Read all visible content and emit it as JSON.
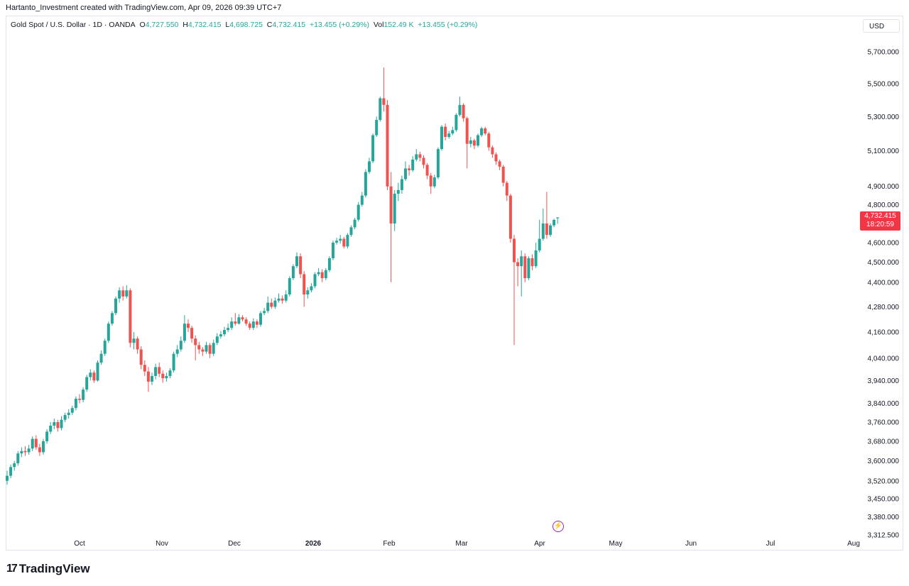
{
  "credit": "Hartanto_Investment created with TradingView.com, Apr 09, 2026 09:39 UTC+7",
  "legend": {
    "symbol": "Gold Spot / U.S. Dollar · 1D · OANDA",
    "o_label": "O",
    "o": "4,727.550",
    "h_label": "H",
    "h": "4,732.415",
    "l_label": "L",
    "l": "4,698.725",
    "c_label": "C",
    "c": "4,732.415",
    "change": "+13.455 (+0.29%)",
    "vol_label": "Vol",
    "vol": "152.49 K",
    "vol_change": "+13.455 (+0.29%)"
  },
  "currency": "USD",
  "last_price": {
    "price": "4,732.415",
    "countdown": "18:20:59",
    "color": "#f23645"
  },
  "logo_text": "TradingView",
  "colors": {
    "up": "#26a69a",
    "down": "#ef5350",
    "accent": "#9c27b0"
  },
  "chart_data": {
    "type": "candlestick",
    "scale": "log",
    "ylim": [
      3312.5,
      5700
    ],
    "grid": false,
    "price_ticks": [
      {
        "value": 5700,
        "label": "5,700.000"
      },
      {
        "value": 5500,
        "label": "5,500.000"
      },
      {
        "value": 5300,
        "label": "5,300.000"
      },
      {
        "value": 5100,
        "label": "5,100.000"
      },
      {
        "value": 4900,
        "label": "4,900.000"
      },
      {
        "value": 4800,
        "label": "4,800.000"
      },
      {
        "value": 4600,
        "label": "4,600.000"
      },
      {
        "value": 4500,
        "label": "4,500.000"
      },
      {
        "value": 4400,
        "label": "4,400.000"
      },
      {
        "value": 4280,
        "label": "4,280.000"
      },
      {
        "value": 4160,
        "label": "4,160.000"
      },
      {
        "value": 4040,
        "label": "4,040.000"
      },
      {
        "value": 3940,
        "label": "3,940.000"
      },
      {
        "value": 3840,
        "label": "3,840.000"
      },
      {
        "value": 3760,
        "label": "3,760.000"
      },
      {
        "value": 3680,
        "label": "3,680.000"
      },
      {
        "value": 3600,
        "label": "3,600.000"
      },
      {
        "value": 3520,
        "label": "3,520.000"
      },
      {
        "value": 3450,
        "label": "3,450.000"
      },
      {
        "value": 3380,
        "label": "3,380.000"
      },
      {
        "value": 3312.5,
        "label": "3,312.500"
      }
    ],
    "time_ticks": [
      "Oct",
      "Nov",
      "Dec",
      "2026",
      "Feb",
      "Mar",
      "Apr",
      "May",
      "Jun",
      "Jul",
      "Aug"
    ],
    "candles": [
      [
        3520,
        3560,
        3505,
        3540
      ],
      [
        3540,
        3585,
        3530,
        3575
      ],
      [
        3575,
        3600,
        3560,
        3590
      ],
      [
        3590,
        3640,
        3580,
        3630
      ],
      [
        3630,
        3655,
        3615,
        3640
      ],
      [
        3640,
        3660,
        3620,
        3635
      ],
      [
        3635,
        3665,
        3625,
        3650
      ],
      [
        3650,
        3700,
        3640,
        3690
      ],
      [
        3690,
        3705,
        3645,
        3655
      ],
      [
        3655,
        3670,
        3620,
        3635
      ],
      [
        3635,
        3690,
        3625,
        3680
      ],
      [
        3680,
        3730,
        3670,
        3720
      ],
      [
        3720,
        3760,
        3710,
        3745
      ],
      [
        3745,
        3775,
        3730,
        3760
      ],
      [
        3760,
        3770,
        3720,
        3735
      ],
      [
        3735,
        3785,
        3725,
        3770
      ],
      [
        3770,
        3800,
        3760,
        3790
      ],
      [
        3790,
        3815,
        3775,
        3800
      ],
      [
        3800,
        3830,
        3790,
        3820
      ],
      [
        3820,
        3870,
        3810,
        3860
      ],
      [
        3860,
        3880,
        3840,
        3855
      ],
      [
        3855,
        3910,
        3845,
        3900
      ],
      [
        3900,
        3965,
        3890,
        3955
      ],
      [
        3955,
        3990,
        3940,
        3975
      ],
      [
        3975,
        3985,
        3930,
        3940
      ],
      [
        3940,
        4030,
        3935,
        4020
      ],
      [
        4020,
        4075,
        4010,
        4060
      ],
      [
        4060,
        4130,
        4050,
        4120
      ],
      [
        4120,
        4210,
        4110,
        4200
      ],
      [
        4200,
        4260,
        4190,
        4250
      ],
      [
        4250,
        4330,
        4240,
        4320
      ],
      [
        4320,
        4375,
        4300,
        4360
      ],
      [
        4360,
        4380,
        4310,
        4330
      ],
      [
        4330,
        4385,
        4320,
        4360
      ],
      [
        4360,
        4370,
        4090,
        4110
      ],
      [
        4110,
        4160,
        4080,
        4130
      ],
      [
        4130,
        4140,
        4060,
        4080
      ],
      [
        4080,
        4095,
        3990,
        4010
      ],
      [
        4010,
        4030,
        3960,
        3980
      ],
      [
        3980,
        4000,
        3890,
        3935
      ],
      [
        3935,
        3975,
        3920,
        3960
      ],
      [
        3960,
        4015,
        3945,
        4000
      ],
      [
        4000,
        4020,
        3955,
        3970
      ],
      [
        3970,
        3985,
        3930,
        3950
      ],
      [
        3950,
        3975,
        3935,
        3960
      ],
      [
        3960,
        3995,
        3950,
        3985
      ],
      [
        3985,
        4070,
        3975,
        4060
      ],
      [
        4060,
        4100,
        4045,
        4080
      ],
      [
        4080,
        4140,
        4070,
        4120
      ],
      [
        4120,
        4240,
        4110,
        4200
      ],
      [
        4200,
        4220,
        4160,
        4180
      ],
      [
        4180,
        4190,
        4110,
        4130
      ],
      [
        4130,
        4145,
        4030,
        4100
      ],
      [
        4100,
        4115,
        4060,
        4080
      ],
      [
        4080,
        4090,
        4050,
        4070
      ],
      [
        4070,
        4115,
        4060,
        4100
      ],
      [
        4100,
        4110,
        4040,
        4060
      ],
      [
        4060,
        4125,
        4050,
        4110
      ],
      [
        4110,
        4155,
        4100,
        4140
      ],
      [
        4140,
        4165,
        4130,
        4150
      ],
      [
        4150,
        4185,
        4140,
        4170
      ],
      [
        4170,
        4200,
        4160,
        4180
      ],
      [
        4180,
        4230,
        4170,
        4210
      ],
      [
        4210,
        4250,
        4190,
        4200
      ],
      [
        4200,
        4245,
        4195,
        4230
      ],
      [
        4230,
        4240,
        4210,
        4220
      ],
      [
        4220,
        4230,
        4190,
        4200
      ],
      [
        4200,
        4210,
        4170,
        4180
      ],
      [
        4180,
        4225,
        4170,
        4210
      ],
      [
        4210,
        4220,
        4180,
        4195
      ],
      [
        4195,
        4260,
        4185,
        4250
      ],
      [
        4250,
        4275,
        4240,
        4260
      ],
      [
        4260,
        4330,
        4250,
        4300
      ],
      [
        4300,
        4320,
        4270,
        4280
      ],
      [
        4280,
        4325,
        4270,
        4310
      ],
      [
        4310,
        4345,
        4300,
        4320
      ],
      [
        4320,
        4335,
        4295,
        4310
      ],
      [
        4310,
        4360,
        4300,
        4340
      ],
      [
        4340,
        4430,
        4330,
        4420
      ],
      [
        4420,
        4490,
        4410,
        4480
      ],
      [
        4480,
        4550,
        4470,
        4530
      ],
      [
        4530,
        4545,
        4420,
        4440
      ],
      [
        4440,
        4455,
        4280,
        4340
      ],
      [
        4340,
        4375,
        4320,
        4360
      ],
      [
        4360,
        4395,
        4350,
        4380
      ],
      [
        4380,
        4450,
        4370,
        4440
      ],
      [
        4440,
        4470,
        4430,
        4450
      ],
      [
        4450,
        4465,
        4400,
        4420
      ],
      [
        4420,
        4470,
        4410,
        4460
      ],
      [
        4460,
        4530,
        4450,
        4520
      ],
      [
        4520,
        4610,
        4510,
        4600
      ],
      [
        4600,
        4625,
        4590,
        4610
      ],
      [
        4610,
        4640,
        4595,
        4620
      ],
      [
        4620,
        4630,
        4570,
        4580
      ],
      [
        4580,
        4650,
        4570,
        4640
      ],
      [
        4640,
        4690,
        4630,
        4680
      ],
      [
        4680,
        4730,
        4670,
        4720
      ],
      [
        4720,
        4815,
        4710,
        4800
      ],
      [
        4800,
        4870,
        4790,
        4850
      ],
      [
        4850,
        4995,
        4840,
        4980
      ],
      [
        4980,
        5060,
        4970,
        5040
      ],
      [
        5040,
        5200,
        5030,
        5190
      ],
      [
        5190,
        5300,
        5180,
        5280
      ],
      [
        5280,
        5420,
        5270,
        5410
      ],
      [
        5410,
        5600,
        5330,
        5370
      ],
      [
        5370,
        5400,
        4880,
        4900
      ],
      [
        4900,
        4980,
        4400,
        4700
      ],
      [
        4700,
        4880,
        4660,
        4860
      ],
      [
        4860,
        4920,
        4820,
        4880
      ],
      [
        4880,
        4960,
        4860,
        4940
      ],
      [
        4940,
        5040,
        4930,
        5000
      ],
      [
        5000,
        5020,
        4960,
        4990
      ],
      [
        4990,
        5070,
        4980,
        5050
      ],
      [
        5050,
        5110,
        5040,
        5080
      ],
      [
        5080,
        5095,
        5040,
        5060
      ],
      [
        5060,
        5075,
        5000,
        5020
      ],
      [
        5020,
        5030,
        4940,
        4960
      ],
      [
        4960,
        4975,
        4860,
        4900
      ],
      [
        4900,
        4965,
        4890,
        4950
      ],
      [
        4950,
        5120,
        4940,
        5110
      ],
      [
        5110,
        5250,
        5100,
        5240
      ],
      [
        5240,
        5260,
        5160,
        5180
      ],
      [
        5180,
        5215,
        5170,
        5200
      ],
      [
        5200,
        5240,
        5190,
        5220
      ],
      [
        5220,
        5320,
        5210,
        5310
      ],
      [
        5310,
        5420,
        5300,
        5370
      ],
      [
        5370,
        5380,
        5270,
        5290
      ],
      [
        5290,
        5300,
        5000,
        5140
      ],
      [
        5140,
        5180,
        5120,
        5160
      ],
      [
        5160,
        5170,
        5110,
        5130
      ],
      [
        5130,
        5200,
        5120,
        5190
      ],
      [
        5190,
        5240,
        5180,
        5230
      ],
      [
        5230,
        5240,
        5190,
        5200
      ],
      [
        5200,
        5210,
        5100,
        5120
      ],
      [
        5120,
        5130,
        5060,
        5080
      ],
      [
        5080,
        5090,
        5020,
        5040
      ],
      [
        5040,
        5050,
        4990,
        5010
      ],
      [
        5010,
        5020,
        4900,
        4920
      ],
      [
        4920,
        4930,
        4820,
        4850
      ],
      [
        4850,
        4860,
        4600,
        4620
      ],
      [
        4620,
        4640,
        4100,
        4500
      ],
      [
        4500,
        4520,
        4380,
        4480
      ],
      [
        4480,
        4560,
        4330,
        4530
      ],
      [
        4530,
        4545,
        4400,
        4420
      ],
      [
        4420,
        4530,
        4410,
        4520
      ],
      [
        4520,
        4540,
        4460,
        4480
      ],
      [
        4480,
        4600,
        4470,
        4560
      ],
      [
        4560,
        4720,
        4550,
        4620
      ],
      [
        4620,
        4780,
        4610,
        4700
      ],
      [
        4700,
        4870,
        4620,
        4640
      ],
      [
        4640,
        4700,
        4630,
        4690
      ],
      [
        4690,
        4725,
        4680,
        4719
      ],
      [
        4727.55,
        4732.415,
        4698.725,
        4732.415
      ]
    ]
  }
}
